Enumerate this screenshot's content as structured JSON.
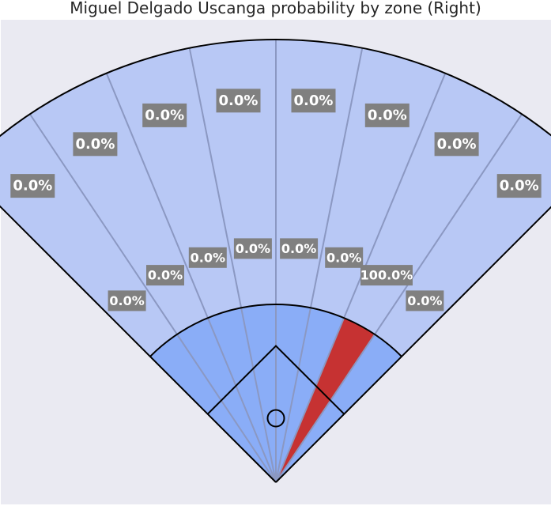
{
  "chart_data": {
    "type": "polar-wedge",
    "title": "Miguel Delgado Uscanga probability by zone (Right)",
    "background_color": "#eaeaf2",
    "colors": {
      "outfield": "#b8c8f5",
      "infield": "#8aadf7",
      "highlight": "#c63232",
      "spoke": "#8b98c2",
      "outline": "#000000",
      "label_box": "#808080",
      "label_text": "#ffffff"
    },
    "outfield_zones": [
      {
        "zone": 1,
        "label": "0.0%",
        "probability": 0.0
      },
      {
        "zone": 2,
        "label": "0.0%",
        "probability": 0.0
      },
      {
        "zone": 3,
        "label": "0.0%",
        "probability": 0.0
      },
      {
        "zone": 4,
        "label": "0.0%",
        "probability": 0.0
      },
      {
        "zone": 5,
        "label": "0.0%",
        "probability": 0.0
      },
      {
        "zone": 6,
        "label": "0.0%",
        "probability": 0.0
      },
      {
        "zone": 7,
        "label": "0.0%",
        "probability": 0.0
      },
      {
        "zone": 8,
        "label": "0.0%",
        "probability": 0.0
      }
    ],
    "infield_zones": [
      {
        "zone": 1,
        "label": "0.0%",
        "probability": 0.0
      },
      {
        "zone": 2,
        "label": "0.0%",
        "probability": 0.0
      },
      {
        "zone": 3,
        "label": "0.0%",
        "probability": 0.0
      },
      {
        "zone": 4,
        "label": "0.0%",
        "probability": 0.0
      },
      {
        "zone": 5,
        "label": "0.0%",
        "probability": 0.0
      },
      {
        "zone": 6,
        "label": "0.0%",
        "probability": 0.0
      },
      {
        "zone": 7,
        "label": "100.0%",
        "probability": 100.0
      },
      {
        "zone": 8,
        "label": "0.0%",
        "probability": 0.0
      }
    ]
  }
}
